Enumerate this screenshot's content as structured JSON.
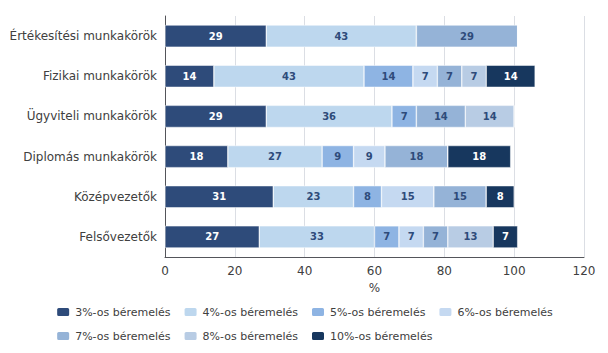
{
  "chart_data": {
    "type": "bar",
    "orientation": "horizontal",
    "stacked": true,
    "categories": [
      "Értékesítési munkakörök",
      "Fizikai munkakörök",
      "Ügyviteli munkakörök",
      "Diplomás munkakörök",
      "Középvezetők",
      "Felsővezetők"
    ],
    "series": [
      {
        "name": "3%-os béremelés",
        "color": "#2E4B7A",
        "values": [
          29,
          14,
          29,
          18,
          31,
          27
        ]
      },
      {
        "name": "4%-os béremelés",
        "color": "#BDD7EE",
        "values": [
          43,
          43,
          36,
          27,
          23,
          33
        ]
      },
      {
        "name": "5%-os béremelés",
        "color": "#8EB4E3",
        "values": [
          0,
          14,
          7,
          9,
          8,
          7
        ]
      },
      {
        "name": "6%-os béremelés",
        "color": "#C5D9F1",
        "values": [
          0,
          7,
          0,
          9,
          15,
          7
        ]
      },
      {
        "name": "7%-os béremelés",
        "color": "#95B3D7",
        "values": [
          29,
          7,
          14,
          18,
          15,
          7
        ]
      },
      {
        "name": "8%-os béremelés",
        "color": "#B8CCE4",
        "values": [
          0,
          7,
          14,
          0,
          0,
          13
        ]
      },
      {
        "name": "10%-os béremelés",
        "color": "#17375E",
        "values": [
          0,
          14,
          0,
          18,
          8,
          7
        ]
      }
    ],
    "xlabel": "%",
    "xlim": [
      0,
      120
    ],
    "xticks": [
      0,
      20,
      40,
      60,
      80,
      100,
      120
    ],
    "grid": true,
    "legend": "bottom",
    "data_labels": true
  }
}
